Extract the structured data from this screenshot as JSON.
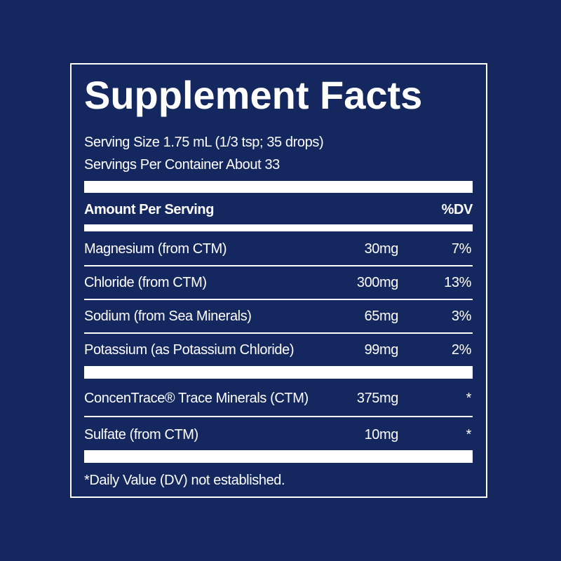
{
  "title": "Supplement Facts",
  "serving_size": "Serving Size 1.75 mL (1/3 tsp; 35 drops)",
  "servings_per_container": "Servings Per Container About 33",
  "table": {
    "header": [
      "Amount Per Serving",
      "%DV"
    ],
    "rows": [
      [
        "Magnesium (from CTM)",
        "30mg",
        "7%"
      ],
      [
        "Chloride (from CTM)",
        "300mg",
        "13%"
      ],
      [
        "Sodium (from Sea Minerals)",
        "65mg",
        "3%"
      ],
      [
        "Potassium (as Potassium Chloride)",
        "99mg",
        "2%"
      ]
    ],
    "other_rows": [
      [
        "ConcenTrace® Trace Minerals (CTM)",
        "375mg",
        "*"
      ],
      [
        "Sulfate (from CTM)",
        "10mg",
        "*"
      ]
    ]
  },
  "footnote": "*Daily Value (DV) not established."
}
